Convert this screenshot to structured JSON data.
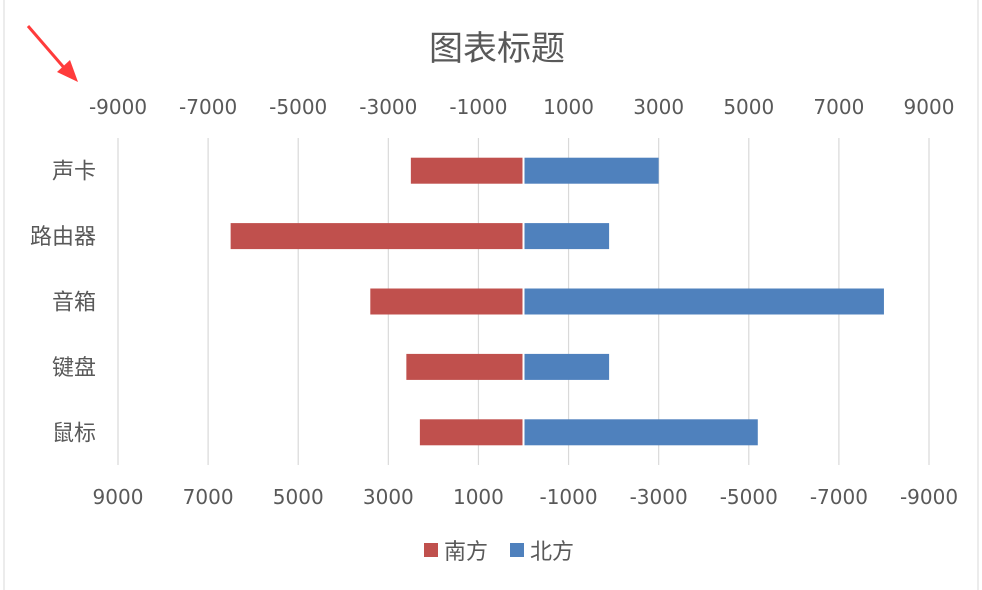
{
  "colors": {
    "south": "#c0504d",
    "north": "#4f81bd",
    "grid": "#d9d9d9",
    "text": "#595959",
    "annotation_arrow": "#ff3b3b"
  },
  "chart_data": {
    "type": "bar",
    "orientation": "horizontal",
    "layout": "diverging (butterfly)",
    "title": "图表标题",
    "categories": [
      "声卡",
      "路由器",
      "音箱",
      "键盘",
      "鼠标"
    ],
    "series": [
      {
        "name": "南方",
        "values": [
          2500,
          6500,
          3400,
          2600,
          2300
        ],
        "side": "left",
        "color": "#c0504d"
      },
      {
        "name": "北方",
        "values": [
          3000,
          1900,
          8000,
          1900,
          5200
        ],
        "side": "right",
        "color": "#4f81bd"
      }
    ],
    "xlim": [
      -9000,
      9000
    ],
    "top_axis_ticks": [
      "-9000",
      "-7000",
      "-5000",
      "-3000",
      "-1000",
      "1000",
      "3000",
      "5000",
      "7000",
      "9000"
    ],
    "bottom_axis_ticks": [
      "9000",
      "7000",
      "5000",
      "3000",
      "1000",
      "-1000",
      "-3000",
      "-5000",
      "-7000",
      "-9000"
    ],
    "grid": true,
    "legend": "bottom",
    "annotation": "red arrow pointing at top-left axis label"
  }
}
